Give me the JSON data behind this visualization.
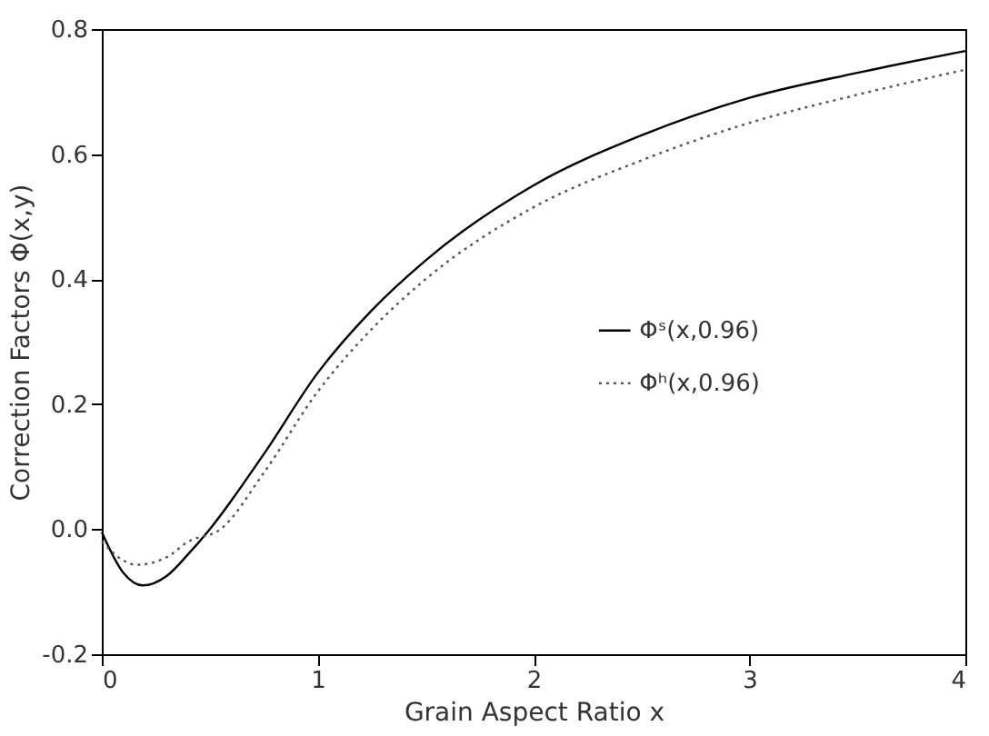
{
  "chart_data": {
    "type": "line",
    "xlabel": "Grain Aspect Ratio  x",
    "ylabel": "Correction Factors Φ(x,y)",
    "xlim": [
      0,
      4
    ],
    "xticks": [
      0,
      1,
      2,
      3,
      4
    ],
    "ylim": [
      -0.2,
      0.8
    ],
    "yticks": [
      {
        "value": -0.2,
        "label": "-0.2"
      },
      {
        "value": 0,
        "label": "0.0"
      },
      0.2,
      0.4,
      0.6,
      0.8
    ],
    "grid": false,
    "legend": "right",
    "marker": "none",
    "series": [
      {
        "name": "Φˢ(x,0.96)",
        "color": "#000000",
        "line_style": "solid",
        "x": [
          0,
          0.1,
          0.19,
          0.3,
          0.4,
          0.5,
          0.75,
          1,
          1.25,
          1.5,
          2,
          2.5,
          3,
          3.5,
          4
        ],
        "values": [
          -0.005,
          -0.07,
          -0.09,
          -0.075,
          -0.04,
          0.0,
          0.12,
          0.25,
          0.35,
          0.43,
          0.55,
          0.63,
          0.69,
          0.73,
          0.765
        ]
      },
      {
        "name": "Φʰ(x,0.96)",
        "color": "#555555",
        "line_style": "dotted",
        "x": [
          0,
          0.1,
          0.16,
          0.3,
          0.4,
          0.55,
          0.75,
          1,
          1.25,
          1.5,
          2,
          2.5,
          3,
          3.5,
          4
        ],
        "values": [
          -0.02,
          -0.05,
          -0.057,
          -0.045,
          -0.02,
          0.0,
          0.09,
          0.22,
          0.32,
          0.4,
          0.515,
          0.59,
          0.65,
          0.695,
          0.735
        ]
      }
    ]
  }
}
